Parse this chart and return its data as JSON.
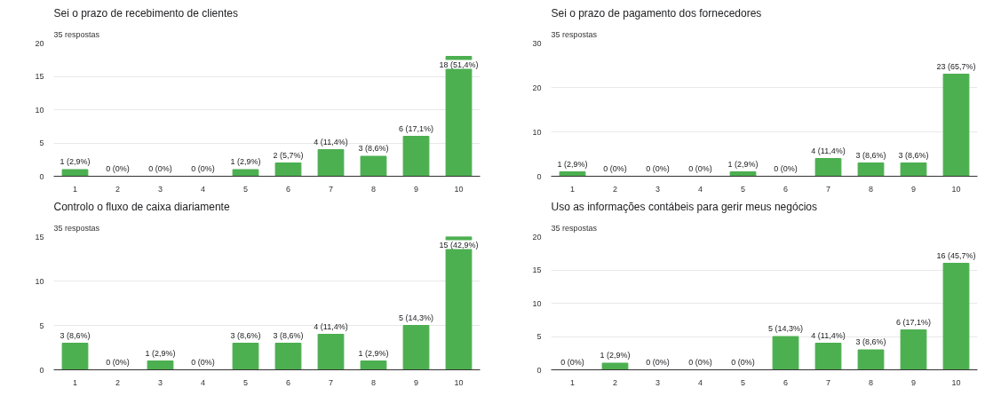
{
  "chart_data": [
    {
      "type": "bar",
      "title": "Sei o prazo de recebimento de clientes",
      "subtitle": "35 respostas",
      "categories": [
        "1",
        "2",
        "3",
        "4",
        "5",
        "6",
        "7",
        "8",
        "9",
        "10"
      ],
      "values": [
        1,
        0,
        0,
        0,
        1,
        2,
        4,
        3,
        6,
        18
      ],
      "color": "#4caf50",
      "value_labels": [
        "1 (2,9%)",
        "0 (0%)",
        "0 (0%)",
        "0 (0%)",
        "1 (2,9%)",
        "2 (5,7%)",
        "4 (11,4%)",
        "3 (8,6%)",
        "6 (17,1%)",
        "18 (51,4%)"
      ],
      "ylim": [
        0,
        20
      ],
      "yticks": [
        0,
        5,
        10,
        15,
        20
      ],
      "grid": "y"
    },
    {
      "type": "bar",
      "title": "Sei o prazo de pagamento dos fornecedores",
      "subtitle": "35 respostas",
      "categories": [
        "1",
        "2",
        "3",
        "4",
        "5",
        "6",
        "7",
        "8",
        "9",
        "10"
      ],
      "values": [
        1,
        0,
        0,
        0,
        1,
        0,
        4,
        3,
        3,
        23
      ],
      "color": "#4caf50",
      "value_labels": [
        "1 (2,9%)",
        "0 (0%)",
        "0 (0%)",
        "0 (0%)",
        "1 (2,9%)",
        "0 (0%)",
        "4 (11,4%)",
        "3 (8,6%)",
        "3 (8,6%)",
        "23 (65,7%)"
      ],
      "ylim": [
        0,
        30
      ],
      "yticks": [
        0,
        10,
        20,
        30
      ],
      "grid": "y"
    },
    {
      "type": "bar",
      "title": "Controlo o fluxo de caixa diariamente",
      "subtitle": "35 respostas",
      "categories": [
        "1",
        "2",
        "3",
        "4",
        "5",
        "6",
        "7",
        "8",
        "9",
        "10"
      ],
      "values": [
        3,
        0,
        1,
        0,
        3,
        3,
        4,
        1,
        5,
        15
      ],
      "color": "#4caf50",
      "value_labels": [
        "3 (8,6%)",
        "0 (0%)",
        "1 (2,9%)",
        "0 (0%)",
        "3 (8,6%)",
        "3 (8,6%)",
        "4 (11,4%)",
        "1 (2,9%)",
        "5 (14,3%)",
        "15 (42,9%)"
      ],
      "ylim": [
        0,
        15
      ],
      "yticks": [
        0,
        5,
        10,
        15
      ],
      "grid": "y"
    },
    {
      "type": "bar",
      "title": "Uso as informações contábeis para gerir meus negócios",
      "subtitle": "35 respostas",
      "categories": [
        "1",
        "2",
        "3",
        "4",
        "5",
        "6",
        "7",
        "8",
        "9",
        "10"
      ],
      "values": [
        0,
        1,
        0,
        0,
        0,
        5,
        4,
        3,
        6,
        16
      ],
      "color": "#4caf50",
      "value_labels": [
        "0 (0%)",
        "1 (2,9%)",
        "0 (0%)",
        "0 (0%)",
        "0 (0%)",
        "5 (14,3%)",
        "4 (11,4%)",
        "3 (8,6%)",
        "6 (17,1%)",
        "16 (45,7%)"
      ],
      "ylim": [
        0,
        20
      ],
      "yticks": [
        0,
        5,
        10,
        15,
        20
      ],
      "grid": "y"
    }
  ]
}
